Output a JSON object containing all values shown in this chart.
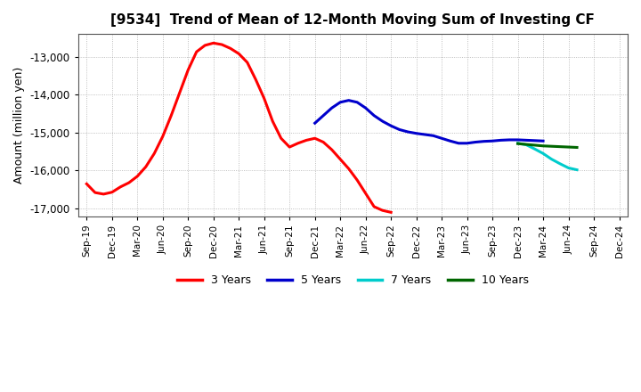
{
  "title": "[9534]  Trend of Mean of 12-Month Moving Sum of Investing CF",
  "ylabel": "Amount (million yen)",
  "ylim": [
    -17200,
    -12400
  ],
  "yticks": [
    -17000,
    -16000,
    -15000,
    -14000,
    -13000
  ],
  "background_color": "#ffffff",
  "grid_color": "#999999",
  "series": {
    "3yr": {
      "color": "#ff0000",
      "label": "3 Years",
      "start_month": 0,
      "data": [
        -16350,
        -16580,
        -16620,
        -16570,
        -16430,
        -16320,
        -16150,
        -15900,
        -15550,
        -15100,
        -14550,
        -13950,
        -13350,
        -12870,
        -12700,
        -12640,
        -12680,
        -12780,
        -12920,
        -13150,
        -13600,
        -14100,
        -14700,
        -15150,
        -15380,
        -15280,
        -15200,
        -15150,
        -15250,
        -15450,
        -15700,
        -15950,
        -16250,
        -16600,
        -16950,
        -17050,
        -17100
      ]
    },
    "5yr": {
      "color": "#0000cc",
      "label": "5 Years",
      "start_month": 27,
      "data": [
        -14750,
        -14550,
        -14350,
        -14200,
        -14150,
        -14200,
        -14350,
        -14550,
        -14700,
        -14820,
        -14920,
        -14980,
        -15020,
        -15050,
        -15080,
        -15150,
        -15220,
        -15280,
        -15280,
        -15250,
        -15230,
        -15220,
        -15200,
        -15190,
        -15190,
        -15200,
        -15210,
        -15220
      ]
    },
    "7yr": {
      "color": "#00cccc",
      "label": "7 Years",
      "start_month": 51,
      "data": [
        -15280,
        -15320,
        -15430,
        -15550,
        -15700,
        -15820,
        -15930,
        -15980
      ]
    },
    "10yr": {
      "color": "#006600",
      "label": "10 Years",
      "start_month": 51,
      "data": [
        -15290,
        -15310,
        -15330,
        -15350,
        -15360,
        -15370,
        -15380,
        -15390
      ]
    }
  },
  "x_labels": [
    "Sep-19",
    "Dec-19",
    "Mar-20",
    "Jun-20",
    "Sep-20",
    "Dec-20",
    "Mar-21",
    "Jun-21",
    "Sep-21",
    "Dec-21",
    "Mar-22",
    "Jun-22",
    "Sep-22",
    "Dec-22",
    "Mar-23",
    "Jun-23",
    "Sep-23",
    "Dec-23",
    "Mar-24",
    "Jun-24",
    "Sep-24",
    "Dec-24"
  ],
  "linewidth": 2.2
}
